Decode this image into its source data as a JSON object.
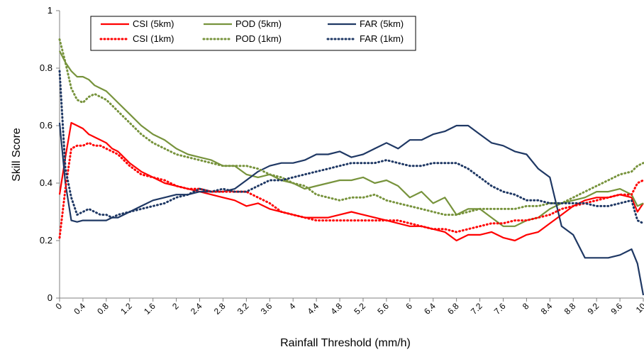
{
  "chart_data": {
    "type": "line",
    "title": "",
    "xlabel": "Rainfall Threshold (mm/h)",
    "ylabel": "Skill Score",
    "xlim": [
      0,
      10
    ],
    "ylim": [
      0,
      1
    ],
    "yticks": [
      "0",
      "0.2",
      "0.4",
      "0.6",
      "0.8",
      "1"
    ],
    "xticks": [
      "0",
      "0.4",
      "0.8",
      "1.2",
      "1.6",
      "2",
      "2.4",
      "2.8",
      "3.2",
      "3.6",
      "4",
      "4.4",
      "4.8",
      "5.2",
      "5.6",
      "6",
      "6.4",
      "6.8",
      "7.2",
      "7.6",
      "8",
      "8.4",
      "8.8",
      "9.2",
      "9.6",
      "10"
    ],
    "grid": false,
    "legend_position": "top",
    "x": [
      0,
      0.1,
      0.2,
      0.3,
      0.4,
      0.5,
      0.6,
      0.7,
      0.8,
      0.9,
      1.0,
      1.2,
      1.4,
      1.6,
      1.8,
      2.0,
      2.2,
      2.4,
      2.6,
      2.8,
      3.0,
      3.2,
      3.4,
      3.6,
      3.8,
      4.0,
      4.2,
      4.4,
      4.6,
      4.8,
      5.0,
      5.2,
      5.4,
      5.6,
      5.8,
      6.0,
      6.2,
      6.4,
      6.6,
      6.8,
      7.0,
      7.2,
      7.4,
      7.6,
      7.8,
      8.0,
      8.2,
      8.4,
      8.6,
      8.8,
      9.0,
      9.2,
      9.4,
      9.6,
      9.8,
      9.9,
      10.0
    ],
    "series": [
      {
        "name": "CSI (5km)",
        "color": "#ff0000",
        "dash": "solid",
        "values": [
          0.36,
          0.49,
          0.61,
          0.6,
          0.59,
          0.57,
          0.56,
          0.55,
          0.54,
          0.52,
          0.51,
          0.47,
          0.44,
          0.42,
          0.4,
          0.39,
          0.38,
          0.37,
          0.36,
          0.35,
          0.34,
          0.32,
          0.33,
          0.31,
          0.3,
          0.29,
          0.28,
          0.28,
          0.28,
          0.29,
          0.3,
          0.29,
          0.28,
          0.27,
          0.26,
          0.25,
          0.25,
          0.24,
          0.23,
          0.2,
          0.22,
          0.22,
          0.23,
          0.21,
          0.2,
          0.22,
          0.23,
          0.26,
          0.29,
          0.32,
          0.34,
          0.35,
          0.35,
          0.36,
          0.35,
          0.3,
          0.33
        ]
      },
      {
        "name": "POD (5km)",
        "color": "#77933c",
        "dash": "solid",
        "values": [
          0.86,
          0.82,
          0.79,
          0.77,
          0.77,
          0.76,
          0.74,
          0.73,
          0.72,
          0.7,
          0.68,
          0.64,
          0.6,
          0.57,
          0.55,
          0.52,
          0.5,
          0.49,
          0.48,
          0.46,
          0.46,
          0.43,
          0.42,
          0.43,
          0.41,
          0.4,
          0.38,
          0.39,
          0.4,
          0.41,
          0.41,
          0.42,
          0.4,
          0.41,
          0.39,
          0.35,
          0.37,
          0.33,
          0.35,
          0.29,
          0.31,
          0.31,
          0.28,
          0.25,
          0.25,
          0.27,
          0.28,
          0.31,
          0.33,
          0.34,
          0.35,
          0.37,
          0.37,
          0.38,
          0.36,
          0.32,
          0.33
        ]
      },
      {
        "name": "FAR (5km)",
        "color": "#1f3864",
        "dash": "solid",
        "values": [
          0.61,
          0.4,
          0.27,
          0.265,
          0.27,
          0.27,
          0.27,
          0.27,
          0.27,
          0.28,
          0.28,
          0.3,
          0.32,
          0.34,
          0.35,
          0.36,
          0.36,
          0.37,
          0.37,
          0.37,
          0.38,
          0.41,
          0.44,
          0.46,
          0.47,
          0.47,
          0.48,
          0.5,
          0.5,
          0.51,
          0.49,
          0.5,
          0.52,
          0.54,
          0.52,
          0.55,
          0.55,
          0.57,
          0.58,
          0.6,
          0.6,
          0.57,
          0.54,
          0.53,
          0.51,
          0.5,
          0.45,
          0.42,
          0.25,
          0.22,
          0.14,
          0.14,
          0.14,
          0.15,
          0.17,
          0.12,
          0.01
        ]
      },
      {
        "name": "CSI (1km)",
        "color": "#ff0000",
        "dash": "dotted",
        "values": [
          0.21,
          0.38,
          0.52,
          0.53,
          0.53,
          0.54,
          0.53,
          0.53,
          0.52,
          0.51,
          0.5,
          0.46,
          0.43,
          0.42,
          0.41,
          0.39,
          0.38,
          0.38,
          0.37,
          0.37,
          0.37,
          0.37,
          0.35,
          0.33,
          0.3,
          0.29,
          0.28,
          0.27,
          0.27,
          0.27,
          0.27,
          0.27,
          0.27,
          0.27,
          0.27,
          0.26,
          0.25,
          0.24,
          0.24,
          0.23,
          0.24,
          0.25,
          0.26,
          0.26,
          0.27,
          0.27,
          0.28,
          0.29,
          0.31,
          0.32,
          0.33,
          0.34,
          0.35,
          0.36,
          0.36,
          0.4,
          0.41
        ]
      },
      {
        "name": "POD (1km)",
        "color": "#77933c",
        "dash": "dotted",
        "values": [
          0.9,
          0.82,
          0.73,
          0.69,
          0.68,
          0.7,
          0.71,
          0.7,
          0.69,
          0.67,
          0.65,
          0.61,
          0.57,
          0.54,
          0.52,
          0.5,
          0.49,
          0.48,
          0.47,
          0.46,
          0.46,
          0.46,
          0.45,
          0.43,
          0.42,
          0.4,
          0.39,
          0.36,
          0.35,
          0.34,
          0.35,
          0.35,
          0.36,
          0.34,
          0.33,
          0.32,
          0.31,
          0.3,
          0.29,
          0.29,
          0.3,
          0.31,
          0.31,
          0.31,
          0.31,
          0.32,
          0.32,
          0.33,
          0.33,
          0.35,
          0.37,
          0.39,
          0.41,
          0.43,
          0.44,
          0.46,
          0.47
        ]
      },
      {
        "name": "FAR (1km)",
        "color": "#1f3864",
        "dash": "dotted",
        "values": [
          0.79,
          0.45,
          0.35,
          0.29,
          0.3,
          0.31,
          0.3,
          0.29,
          0.29,
          0.28,
          0.29,
          0.3,
          0.31,
          0.32,
          0.33,
          0.35,
          0.36,
          0.38,
          0.37,
          0.38,
          0.37,
          0.37,
          0.39,
          0.41,
          0.41,
          0.42,
          0.43,
          0.44,
          0.45,
          0.46,
          0.47,
          0.47,
          0.47,
          0.48,
          0.47,
          0.46,
          0.46,
          0.47,
          0.47,
          0.47,
          0.45,
          0.42,
          0.39,
          0.37,
          0.36,
          0.34,
          0.34,
          0.33,
          0.33,
          0.33,
          0.33,
          0.32,
          0.32,
          0.33,
          0.34,
          0.27,
          0.26
        ]
      }
    ],
    "legend_order": [
      0,
      1,
      2,
      3,
      4,
      5
    ]
  }
}
